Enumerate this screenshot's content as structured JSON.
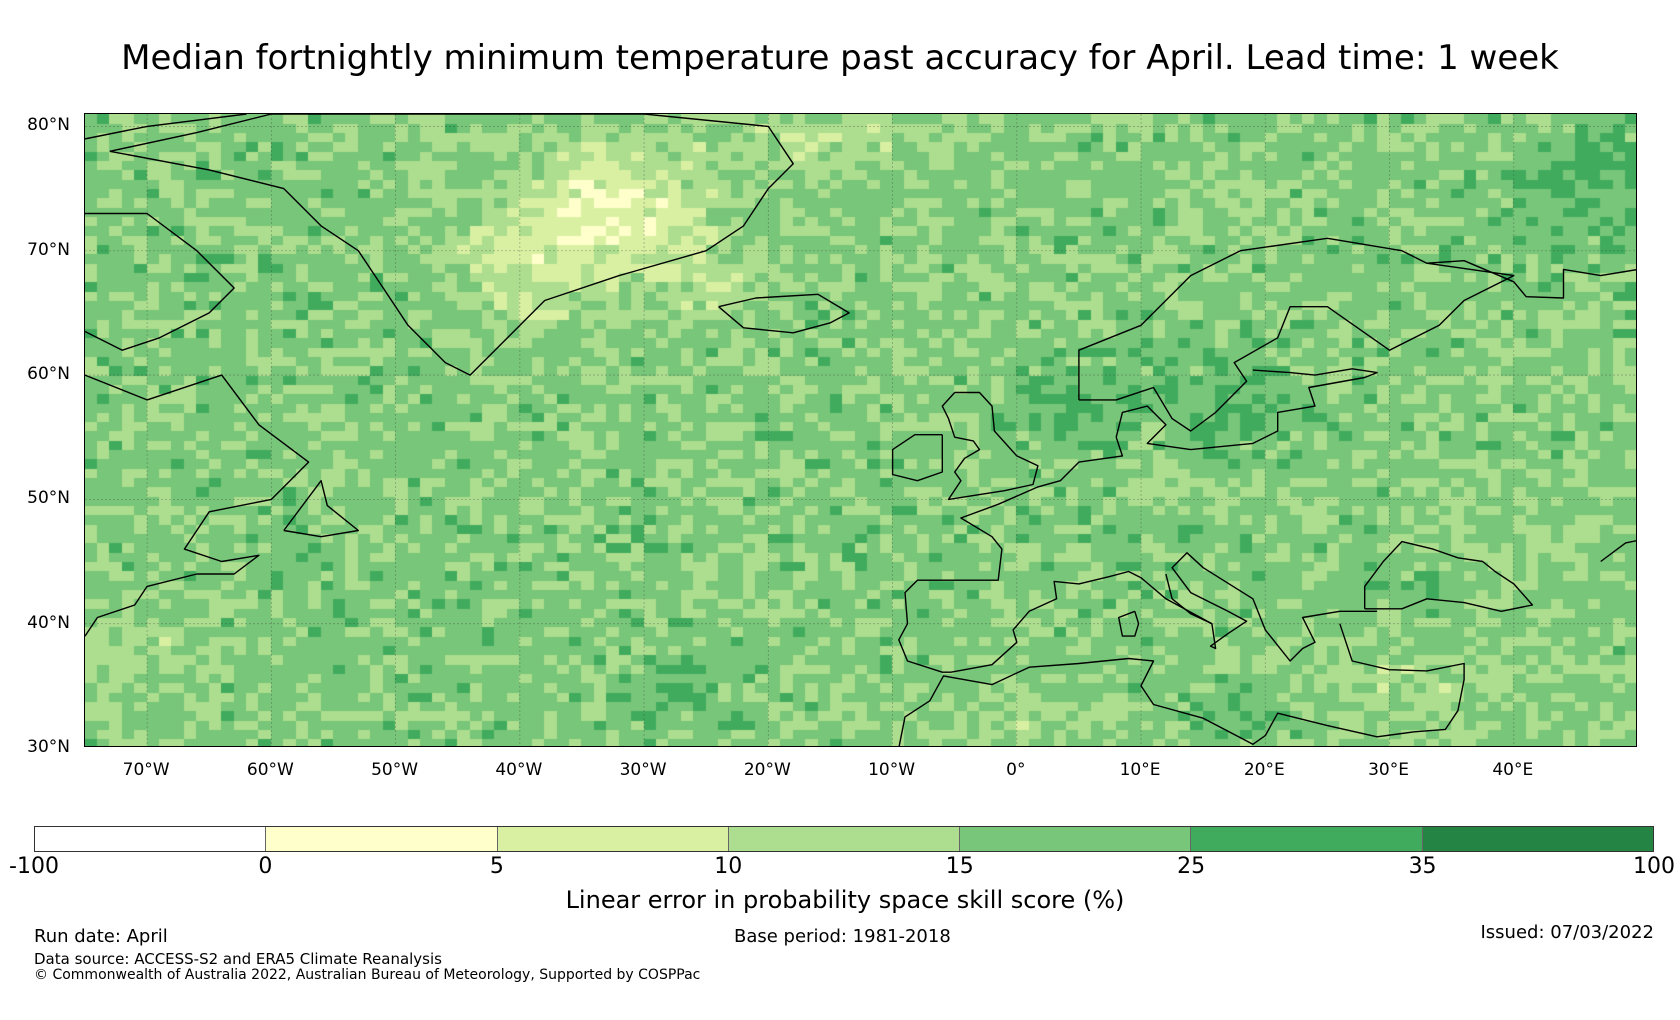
{
  "title": "Median fortnightly minimum temperature past accuracy for April. Lead time: 1 week",
  "map": {
    "extent": {
      "lon_min": -75,
      "lon_max": 50,
      "lat_min": 30,
      "lat_max": 81
    },
    "lat_labels": [
      "80°N",
      "70°N",
      "60°N",
      "50°N",
      "40°N",
      "30°N"
    ],
    "lat_values": [
      80,
      70,
      60,
      50,
      40,
      30
    ],
    "lon_labels": [
      "70°W",
      "60°W",
      "50°W",
      "40°W",
      "30°W",
      "20°W",
      "10°W",
      "0°",
      "10°E",
      "20°E",
      "30°E",
      "40°E"
    ],
    "lon_values": [
      -70,
      -60,
      -50,
      -40,
      -30,
      -20,
      -10,
      0,
      10,
      20,
      30,
      40
    ],
    "gridlines": true
  },
  "colorbar": {
    "label": "Linear error in probability space skill score (%)",
    "ticks": [
      "-100",
      "0",
      "5",
      "10",
      "15",
      "25",
      "35",
      "100"
    ],
    "colors": [
      "#ffffff",
      "#ffffcc",
      "#d9f0a3",
      "#addd8e",
      "#78c679",
      "#41ab5d",
      "#238443"
    ]
  },
  "footer": {
    "run_date": "Run date: April",
    "base_period": "Base period: 1981-2018",
    "issued": "Issued: 07/03/2022",
    "data_source": "Data source: ACCESS-S2 and ERA5 Climate Reanalysis",
    "copyright": "© Commonwealth of Australia 2022, Australian Bureau of Meteorology, Supported by COSPPac"
  }
}
